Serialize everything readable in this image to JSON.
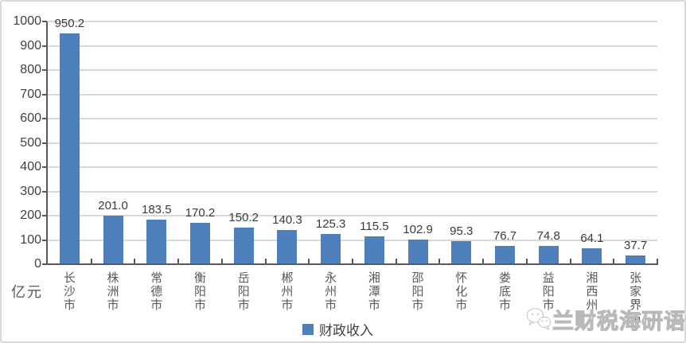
{
  "chart_data": {
    "type": "bar",
    "title": "",
    "xlabel": "",
    "ylabel": "亿元",
    "categories": [
      "长沙市",
      "株洲市",
      "常德市",
      "衡阳市",
      "岳阳市",
      "郴州市",
      "永州市",
      "湘潭市",
      "邵阳市",
      "怀化市",
      "娄底市",
      "益阳市",
      "湘西州",
      "张家界市"
    ],
    "values": [
      950.2,
      201.0,
      183.5,
      170.2,
      150.2,
      140.3,
      125.3,
      115.5,
      102.9,
      95.3,
      76.7,
      74.8,
      64.1,
      37.7
    ],
    "ylim": [
      0,
      1000
    ],
    "ytick_step": 100,
    "grid": true,
    "legend": {
      "label": "财政收入",
      "position": "bottom-center"
    },
    "colors": {
      "bar": "#4E80BC",
      "grid": "#d9d9d9",
      "axis": "#595959",
      "value_label": "#3a3a3a",
      "y_tick_label": "#404040",
      "category_label": "#595959",
      "unit_label": "#595959",
      "legend_label": "#404040"
    }
  },
  "watermark": {
    "text": "兰财税海研语",
    "icon": "wechat-icon",
    "color": "#bdbdbd"
  }
}
